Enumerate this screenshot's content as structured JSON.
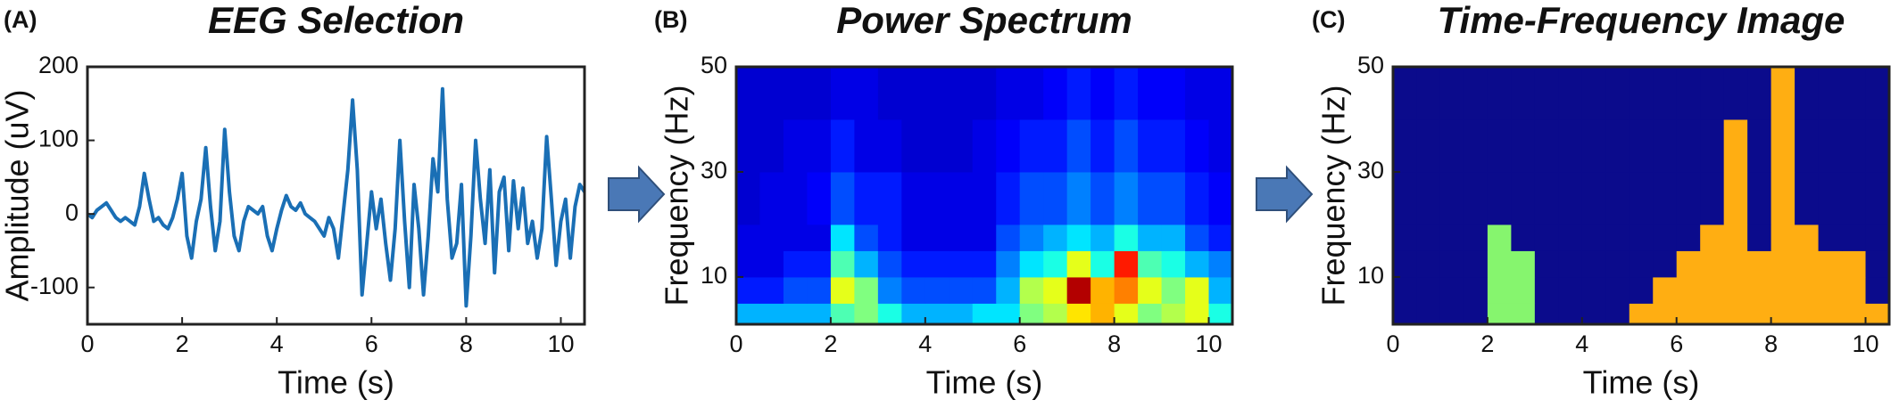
{
  "chart_data": [
    {
      "type": "line",
      "panel_label": "(A)",
      "title": "EEG Selection",
      "xlabel": "Time (s)",
      "ylabel": "Amplitude (uV)",
      "color": "#1a6fb5",
      "x": [
        0,
        0.1,
        0.2,
        0.3,
        0.4,
        0.5,
        0.6,
        0.7,
        0.8,
        0.9,
        1,
        1.1,
        1.2,
        1.3,
        1.4,
        1.5,
        1.6,
        1.7,
        1.8,
        1.9,
        2,
        2.1,
        2.2,
        2.3,
        2.4,
        2.5,
        2.6,
        2.7,
        2.8,
        2.9,
        3,
        3.1,
        3.2,
        3.3,
        3.4,
        3.5,
        3.6,
        3.7,
        3.8,
        3.9,
        4,
        4.1,
        4.2,
        4.3,
        4.4,
        4.5,
        4.6,
        4.7,
        4.8,
        4.9,
        5,
        5.1,
        5.2,
        5.3,
        5.4,
        5.5,
        5.6,
        5.7,
        5.8,
        5.9,
        6,
        6.1,
        6.2,
        6.3,
        6.4,
        6.5,
        6.6,
        6.7,
        6.8,
        6.9,
        7,
        7.1,
        7.2,
        7.3,
        7.4,
        7.5,
        7.6,
        7.7,
        7.8,
        7.9,
        8,
        8.1,
        8.2,
        8.3,
        8.4,
        8.5,
        8.6,
        8.7,
        8.8,
        8.9,
        9,
        9.1,
        9.2,
        9.3,
        9.4,
        9.5,
        9.6,
        9.7,
        9.8,
        9.9,
        10,
        10.1,
        10.2,
        10.3,
        10.4,
        10.5
      ],
      "values": [
        0,
        -5,
        5,
        10,
        15,
        5,
        -5,
        -10,
        -5,
        -10,
        -15,
        10,
        55,
        20,
        -10,
        -5,
        -15,
        -20,
        -5,
        20,
        55,
        -30,
        -60,
        -10,
        20,
        90,
        10,
        -50,
        -10,
        115,
        30,
        -30,
        -50,
        -10,
        10,
        5,
        0,
        10,
        -30,
        -50,
        -20,
        5,
        25,
        10,
        5,
        15,
        0,
        -5,
        -10,
        -20,
        -30,
        -5,
        -20,
        -60,
        0,
        60,
        155,
        60,
        -110,
        -40,
        30,
        -20,
        20,
        -40,
        -90,
        -20,
        100,
        -10,
        -100,
        40,
        -20,
        -110,
        -30,
        75,
        30,
        170,
        20,
        -60,
        -40,
        40,
        -125,
        -30,
        100,
        20,
        -40,
        60,
        -80,
        30,
        50,
        -50,
        45,
        -20,
        35,
        -40,
        -10,
        -60,
        -20,
        105,
        20,
        -70,
        -10,
        20,
        -60,
        10,
        40,
        30
      ],
      "xlim": [
        0,
        10.5
      ],
      "xticks": [
        0,
        2,
        4,
        6,
        8,
        10
      ],
      "ylim": [
        -150,
        200
      ],
      "yticks": [
        -100,
        0,
        100,
        200
      ]
    },
    {
      "type": "heatmap",
      "panel_label": "(B)",
      "title": "Power Spectrum",
      "xlabel": "Time (s)",
      "ylabel": "Frequency (Hz)",
      "colormap": "jet",
      "xbins": [
        0,
        0.5,
        1,
        1.5,
        2,
        2.5,
        3,
        3.5,
        4,
        4.5,
        5,
        5.5,
        6,
        6.5,
        7,
        7.5,
        8,
        8.5,
        9,
        9.5,
        10,
        10.5
      ],
      "ybins": [
        1,
        5,
        10,
        15,
        20,
        30,
        40,
        50
      ],
      "z": [
        [
          0.3,
          0.3,
          0.3,
          0.3,
          0.45,
          0.5,
          0.4,
          0.3,
          0.3,
          0.3,
          0.35,
          0.35,
          0.5,
          0.55,
          0.65,
          0.7,
          0.6,
          0.5,
          0.55,
          0.6,
          0.4
        ],
        [
          0.15,
          0.15,
          0.2,
          0.2,
          0.6,
          0.5,
          0.25,
          0.2,
          0.2,
          0.2,
          0.2,
          0.3,
          0.55,
          0.6,
          0.95,
          0.7,
          0.75,
          0.6,
          0.5,
          0.6,
          0.3
        ],
        [
          0.1,
          0.1,
          0.15,
          0.15,
          0.45,
          0.3,
          0.2,
          0.15,
          0.15,
          0.15,
          0.15,
          0.25,
          0.35,
          0.4,
          0.6,
          0.4,
          0.85,
          0.45,
          0.4,
          0.3,
          0.25
        ],
        [
          0.1,
          0.1,
          0.1,
          0.1,
          0.35,
          0.2,
          0.15,
          0.1,
          0.1,
          0.1,
          0.1,
          0.2,
          0.25,
          0.3,
          0.35,
          0.3,
          0.4,
          0.3,
          0.3,
          0.2,
          0.15
        ],
        [
          0.08,
          0.1,
          0.1,
          0.12,
          0.2,
          0.15,
          0.15,
          0.1,
          0.1,
          0.1,
          0.1,
          0.15,
          0.2,
          0.2,
          0.25,
          0.2,
          0.25,
          0.2,
          0.2,
          0.15,
          0.12
        ],
        [
          0.08,
          0.08,
          0.1,
          0.1,
          0.15,
          0.1,
          0.1,
          0.08,
          0.08,
          0.08,
          0.1,
          0.12,
          0.15,
          0.15,
          0.2,
          0.15,
          0.2,
          0.15,
          0.15,
          0.12,
          0.1
        ],
        [
          0.08,
          0.08,
          0.08,
          0.08,
          0.1,
          0.1,
          0.08,
          0.08,
          0.08,
          0.08,
          0.08,
          0.1,
          0.1,
          0.12,
          0.15,
          0.12,
          0.15,
          0.12,
          0.12,
          0.1,
          0.1
        ]
      ],
      "xlim": [
        0,
        10.5
      ],
      "xticks": [
        0,
        2,
        4,
        6,
        8,
        10
      ],
      "ylim": [
        1,
        50
      ],
      "yticks": [
        10,
        30,
        50
      ]
    },
    {
      "type": "classmap",
      "panel_label": "(C)",
      "title": "Time-Frequency Image",
      "xlabel": "Time (s)",
      "ylabel": "Frequency (Hz)",
      "class_colors": [
        "#0b0b8c",
        "#86f56e",
        "#ffae12"
      ],
      "xbins": [
        0,
        0.5,
        1,
        1.5,
        2,
        2.5,
        3,
        3.5,
        4,
        4.5,
        5,
        5.5,
        6,
        6.5,
        7,
        7.5,
        8,
        8.5,
        9,
        9.5,
        10,
        10.5
      ],
      "ybins": [
        1,
        5,
        10,
        15,
        20,
        30,
        40,
        50
      ],
      "z": [
        [
          0,
          0,
          0,
          0,
          1,
          1,
          0,
          0,
          0,
          0,
          2,
          2,
          2,
          2,
          2,
          2,
          2,
          2,
          2,
          2,
          2
        ],
        [
          0,
          0,
          0,
          0,
          1,
          1,
          0,
          0,
          0,
          0,
          0,
          2,
          2,
          2,
          2,
          2,
          2,
          2,
          2,
          2,
          0
        ],
        [
          0,
          0,
          0,
          0,
          1,
          1,
          0,
          0,
          0,
          0,
          0,
          0,
          2,
          2,
          2,
          2,
          2,
          2,
          2,
          2,
          0
        ],
        [
          0,
          0,
          0,
          0,
          1,
          0,
          0,
          0,
          0,
          0,
          0,
          0,
          0,
          2,
          2,
          0,
          2,
          2,
          0,
          0,
          0
        ],
        [
          0,
          0,
          0,
          0,
          0,
          0,
          0,
          0,
          0,
          0,
          0,
          0,
          0,
          0,
          2,
          0,
          2,
          0,
          0,
          0,
          0
        ],
        [
          0,
          0,
          0,
          0,
          0,
          0,
          0,
          0,
          0,
          0,
          0,
          0,
          0,
          0,
          2,
          0,
          2,
          0,
          0,
          0,
          0
        ],
        [
          0,
          0,
          0,
          0,
          0,
          0,
          0,
          0,
          0,
          0,
          0,
          0,
          0,
          0,
          0,
          0,
          2,
          0,
          0,
          0,
          0
        ]
      ],
      "xlim": [
        0,
        10.5
      ],
      "xticks": [
        0,
        2,
        4,
        6,
        8,
        10
      ],
      "ylim": [
        1,
        50
      ],
      "yticks": [
        10,
        30,
        50
      ]
    }
  ]
}
